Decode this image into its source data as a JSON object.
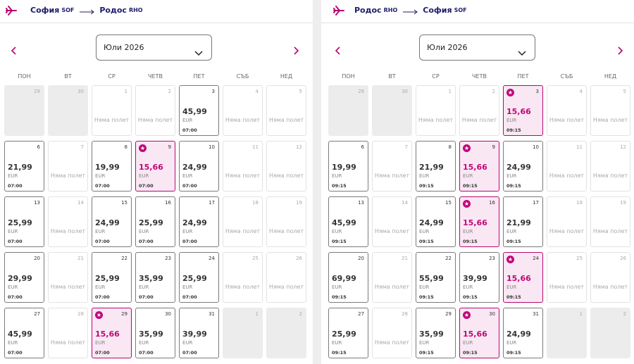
{
  "panels": [
    {
      "header": {
        "from_city": "София",
        "from_code": "SOF",
        "to_city": "Родос",
        "to_code": "RHO"
      },
      "month": "Юли 2026",
      "weekdays": [
        "ПОН",
        "ВТ",
        "СР",
        "ЧЕТВ",
        "ПЕТ",
        "СЪБ",
        "НЕД"
      ],
      "days": [
        {
          "day": "29"
        },
        {
          "day": "30"
        },
        {
          "day": "1",
          "status": "Няма полет"
        },
        {
          "day": "2",
          "status": "Няма полет"
        },
        {
          "day": "3",
          "price": "45,99",
          "currency": "EUR",
          "time": "07:00"
        },
        {
          "day": "4",
          "status": "Няма полет"
        },
        {
          "day": "5",
          "status": "Няма полет"
        },
        {
          "day": "6",
          "price": "21,99",
          "currency": "EUR",
          "time": "07:00"
        },
        {
          "day": "7",
          "status": "Няма полет"
        },
        {
          "day": "8",
          "price": "19,99",
          "currency": "EUR",
          "time": "07:00"
        },
        {
          "day": "9",
          "price": "15,66",
          "currency": "EUR",
          "time": "07:00",
          "featured": true
        },
        {
          "day": "10",
          "price": "24,99",
          "currency": "EUR",
          "time": "07:00"
        },
        {
          "day": "11",
          "status": "Няма полет"
        },
        {
          "day": "12",
          "status": "Няма полет"
        },
        {
          "day": "13",
          "price": "25,99",
          "currency": "EUR",
          "time": "07:00"
        },
        {
          "day": "14",
          "status": "Няма полет"
        },
        {
          "day": "15",
          "price": "24,99",
          "currency": "EUR",
          "time": "07:00"
        },
        {
          "day": "16",
          "price": "25,99",
          "currency": "EUR",
          "time": "07:00"
        },
        {
          "day": "17",
          "price": "24,99",
          "currency": "EUR",
          "time": "07:00"
        },
        {
          "day": "18",
          "status": "Няма полет"
        },
        {
          "day": "19",
          "status": "Няма полет"
        },
        {
          "day": "20",
          "price": "29,99",
          "currency": "EUR",
          "time": "07:00"
        },
        {
          "day": "21",
          "status": "Няма полет"
        },
        {
          "day": "22",
          "price": "25,99",
          "currency": "EUR",
          "time": "07:00"
        },
        {
          "day": "23",
          "price": "35,99",
          "currency": "EUR",
          "time": "07:00"
        },
        {
          "day": "24",
          "price": "25,99",
          "currency": "EUR",
          "time": "07:00"
        },
        {
          "day": "25",
          "status": "Няма полет"
        },
        {
          "day": "26",
          "status": "Няма полет"
        },
        {
          "day": "27",
          "price": "45,99",
          "currency": "EUR",
          "time": "07:00"
        },
        {
          "day": "28",
          "status": "Няма полет"
        },
        {
          "day": "29",
          "price": "15,66",
          "currency": "EUR",
          "time": "07:00",
          "featured": true
        },
        {
          "day": "30",
          "price": "35,99",
          "currency": "EUR",
          "time": "07:00"
        },
        {
          "day": "31",
          "price": "39,99",
          "currency": "EUR",
          "time": "07:00"
        },
        {
          "day": "1"
        },
        {
          "day": "2"
        }
      ]
    },
    {
      "header": {
        "from_city": "Родос",
        "from_code": "RHO",
        "to_city": "София",
        "to_code": "SOF"
      },
      "month": "Юли 2026",
      "weekdays": [
        "ПОН",
        "ВТ",
        "СР",
        "ЧЕТВ",
        "ПЕТ",
        "СЪБ",
        "НЕД"
      ],
      "days": [
        {
          "day": "29"
        },
        {
          "day": "30"
        },
        {
          "day": "1",
          "status": "Няма полет"
        },
        {
          "day": "2",
          "status": "Няма полет"
        },
        {
          "day": "3",
          "price": "15,66",
          "currency": "EUR",
          "time": "09:15",
          "featured": true
        },
        {
          "day": "4",
          "status": "Няма полет"
        },
        {
          "day": "5",
          "status": "Няма полет"
        },
        {
          "day": "6",
          "price": "19,99",
          "currency": "EUR",
          "time": "09:15"
        },
        {
          "day": "7",
          "status": "Няма полет"
        },
        {
          "day": "8",
          "price": "21,99",
          "currency": "EUR",
          "time": "09:15"
        },
        {
          "day": "9",
          "price": "15,66",
          "currency": "EUR",
          "time": "09:15",
          "featured": true
        },
        {
          "day": "10",
          "price": "24,99",
          "currency": "EUR",
          "time": "09:15"
        },
        {
          "day": "11",
          "status": "Няма полет"
        },
        {
          "day": "12",
          "status": "Няма полет"
        },
        {
          "day": "13",
          "price": "45,99",
          "currency": "EUR",
          "time": "09:15"
        },
        {
          "day": "14",
          "status": "Няма полет"
        },
        {
          "day": "15",
          "price": "24,99",
          "currency": "EUR",
          "time": "09:15"
        },
        {
          "day": "16",
          "price": "15,66",
          "currency": "EUR",
          "time": "09:15",
          "featured": true
        },
        {
          "day": "17",
          "price": "21,99",
          "currency": "EUR",
          "time": "09:15"
        },
        {
          "day": "18",
          "status": "Няма полет"
        },
        {
          "day": "19",
          "status": "Няма полет"
        },
        {
          "day": "20",
          "price": "69,99",
          "currency": "EUR",
          "time": "09:15"
        },
        {
          "day": "21",
          "status": "Няма полет"
        },
        {
          "day": "22",
          "price": "55,99",
          "currency": "EUR",
          "time": "09:15"
        },
        {
          "day": "23",
          "price": "39,99",
          "currency": "EUR",
          "time": "09:15"
        },
        {
          "day": "24",
          "price": "15,66",
          "currency": "EUR",
          "time": "09:15",
          "featured": true
        },
        {
          "day": "25",
          "status": "Няма полет"
        },
        {
          "day": "26",
          "status": "Няма полет"
        },
        {
          "day": "27",
          "price": "25,99",
          "currency": "EUR",
          "time": "09:15"
        },
        {
          "day": "28",
          "status": "Няма полет"
        },
        {
          "day": "29",
          "price": "35,99",
          "currency": "EUR",
          "time": "09:15"
        },
        {
          "day": "30",
          "price": "15,66",
          "currency": "EUR",
          "time": "09:15",
          "featured": true
        },
        {
          "day": "31",
          "price": "24,99",
          "currency": "EUR",
          "time": "09:15"
        },
        {
          "day": "1"
        },
        {
          "day": "2"
        }
      ]
    }
  ]
}
